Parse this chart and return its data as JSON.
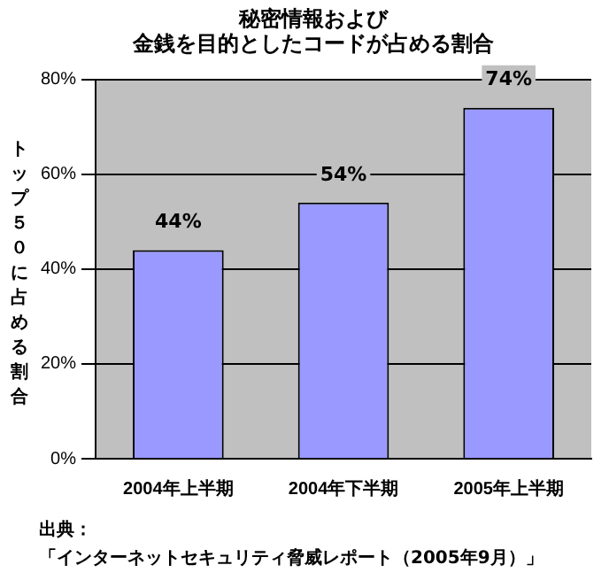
{
  "chart_data": {
    "type": "bar",
    "title": "秘密情報および",
    "subtitle": "金銭を目的としたコードが占める割合",
    "ylabel": "トップ５０に占める割合",
    "categories": [
      "2004年上半期",
      "2004年下半期",
      "2005年上半期"
    ],
    "values": [
      44,
      54,
      74
    ],
    "color": "#9999ff",
    "value_labels": [
      "44%",
      "54%",
      "74%"
    ],
    "ylim": [
      0,
      80
    ],
    "yticks": [
      {
        "value": 0,
        "label": "0%"
      },
      {
        "value": 20,
        "label": "20%"
      },
      {
        "value": 40,
        "label": "40%"
      },
      {
        "value": 60,
        "label": "60%"
      },
      {
        "value": 80,
        "label": "80%"
      }
    ],
    "grid": "y",
    "legend": false,
    "annotations": [
      "出典：",
      "「インターネットセキュリティ脅威レポート（2005年9月）」"
    ]
  }
}
